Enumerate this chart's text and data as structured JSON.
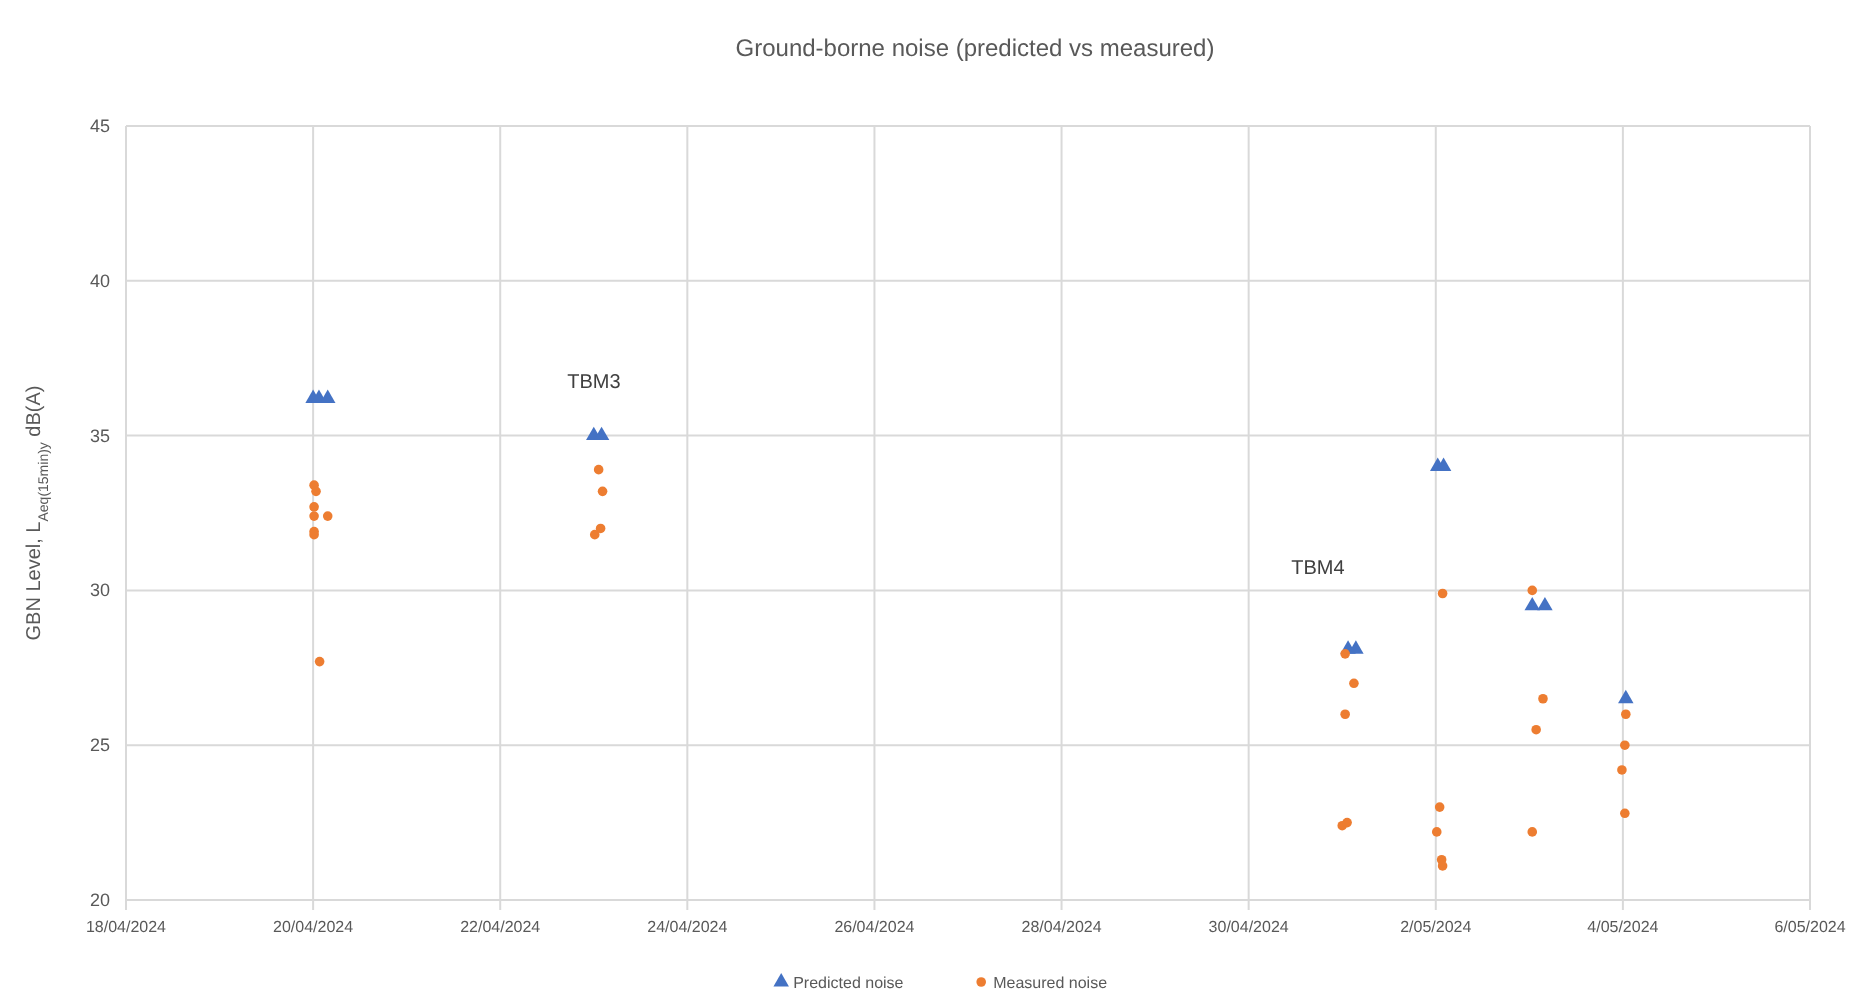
{
  "chart_data": {
    "type": "scatter",
    "title": "Ground-borne noise (predicted vs measured)",
    "ylabel": "GBN Level, L$_{Aeq(15min)y}$ dB(A)",
    "xlim": [
      "2024-04-18",
      "2024-05-06"
    ],
    "xticks": [
      {
        "value": "2024-04-18",
        "label": "18/04/2024"
      },
      {
        "value": "2024-04-20",
        "label": "20/04/2024"
      },
      {
        "value": "2024-04-22",
        "label": "22/04/2024"
      },
      {
        "value": "2024-04-24",
        "label": "24/04/2024"
      },
      {
        "value": "2024-04-26",
        "label": "26/04/2024"
      },
      {
        "value": "2024-04-28",
        "label": "28/04/2024"
      },
      {
        "value": "2024-04-30",
        "label": "30/04/2024"
      },
      {
        "value": "2024-05-02",
        "label": "2/05/2024"
      },
      {
        "value": "2024-05-04",
        "label": "4/05/2024"
      },
      {
        "value": "2024-05-06",
        "label": "6/05/2024"
      }
    ],
    "ylim": [
      20,
      45
    ],
    "yticks": [
      20,
      25,
      30,
      35,
      40,
      45
    ],
    "grid": true,
    "legend": "bottom",
    "annotations": [
      "TBM3",
      "TBM4"
    ],
    "series": [
      {
        "name": "Predicted noise",
        "color": "#4472c4",
        "marker": "triangle",
        "x": [
          "2024-04-20T00:00",
          "2024-04-20T01:30",
          "2024-04-20T03:45",
          "2024-04-23T00:00",
          "2024-04-23T02:00",
          "2024-05-01T01:30",
          "2024-05-01T03:30",
          "2024-05-02T00:30",
          "2024-05-02T02:00",
          "2024-05-03T00:45",
          "2024-05-03T04:00",
          "2024-05-04T00:45"
        ],
        "values": [
          36.2,
          36.2,
          36.2,
          35.0,
          35.0,
          28.1,
          28.1,
          34.0,
          34.0,
          29.5,
          29.5,
          26.5
        ]
      },
      {
        "name": "Measured noise",
        "color": "#ed7d31",
        "marker": "circle",
        "x": [
          "2024-04-20T00:15",
          "2024-04-20T00:45",
          "2024-04-20T00:15",
          "2024-04-20T00:15",
          "2024-04-20T00:15",
          "2024-04-20T00:15",
          "2024-04-20T03:45",
          "2024-04-20T01:40",
          "2024-04-23T01:15",
          "2024-04-23T02:15",
          "2024-04-23T00:15",
          "2024-04-23T01:45",
          "2024-05-01T00:45",
          "2024-05-01T03:00",
          "2024-05-01T00:45",
          "2024-05-01T00:00",
          "2024-05-01T01:15",
          "2024-05-02T01:45",
          "2024-05-02T01:00",
          "2024-05-02T00:15",
          "2024-05-02T01:30",
          "2024-05-02T01:45",
          "2024-05-03T00:45",
          "2024-05-03T03:30",
          "2024-05-03T01:45",
          "2024-05-03T00:45",
          "2024-05-04T00:45",
          "2024-05-04T00:30",
          "2024-05-03T23:45",
          "2024-05-04T00:30"
        ],
        "values": [
          33.4,
          33.2,
          32.7,
          32.4,
          31.9,
          31.8,
          32.4,
          27.7,
          33.9,
          33.2,
          31.8,
          32.0,
          27.95,
          27.0,
          26.0,
          22.4,
          22.5,
          29.9,
          23.0,
          22.2,
          21.3,
          21.1,
          30.0,
          26.5,
          25.5,
          22.2,
          26.0,
          25.0,
          24.2,
          22.8
        ]
      }
    ]
  }
}
